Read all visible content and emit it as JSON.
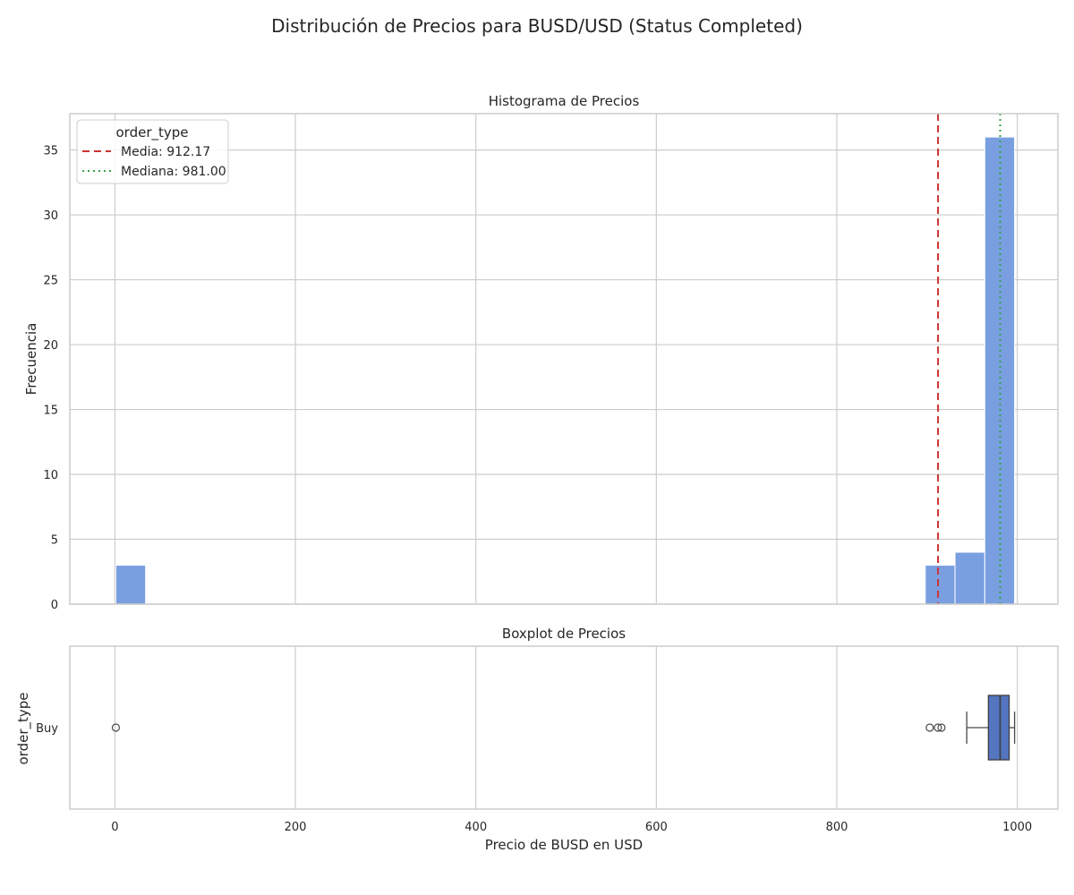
{
  "chart_data": {
    "suptitle": "Distribución de Precios para BUSD/USD (Status Completed)",
    "xlabel": "Precio de BUSD en USD",
    "xlim": [
      -50,
      1045
    ],
    "xticks": [
      0,
      200,
      400,
      600,
      800,
      1000
    ],
    "grid": true,
    "histogram": {
      "type": "bar",
      "title": "Histograma de Precios",
      "ylabel": "Frecuencia",
      "ylim": [
        0,
        37.8
      ],
      "yticks": [
        0,
        5,
        10,
        15,
        20,
        25,
        30,
        35
      ],
      "bar_color": "#7a9fe0",
      "bins": [
        {
          "x0": 1,
          "x1": 34,
          "count": 3
        },
        {
          "x0": 898,
          "x1": 931,
          "count": 3
        },
        {
          "x0": 931,
          "x1": 964,
          "count": 4
        },
        {
          "x0": 964,
          "x1": 997,
          "count": 36
        }
      ],
      "lines": [
        {
          "label": "Media: 912.17",
          "x": 912.17,
          "color": "#cc3333",
          "dash": "8,5"
        },
        {
          "label": "Mediana: 981.00",
          "x": 981.0,
          "color": "#33a04a",
          "dash": "2,4"
        }
      ],
      "legend": {
        "title": "order_type",
        "position": "upper left"
      }
    },
    "boxplot": {
      "type": "box",
      "title": "Boxplot de Precios",
      "ylabel": "order_type",
      "category": "Buy",
      "box_color": "#5475c0",
      "whisker_low": 944,
      "q1": 968,
      "median": 981,
      "q3": 991,
      "whisker_high": 997,
      "outliers": [
        1,
        903,
        912,
        916
      ]
    }
  }
}
